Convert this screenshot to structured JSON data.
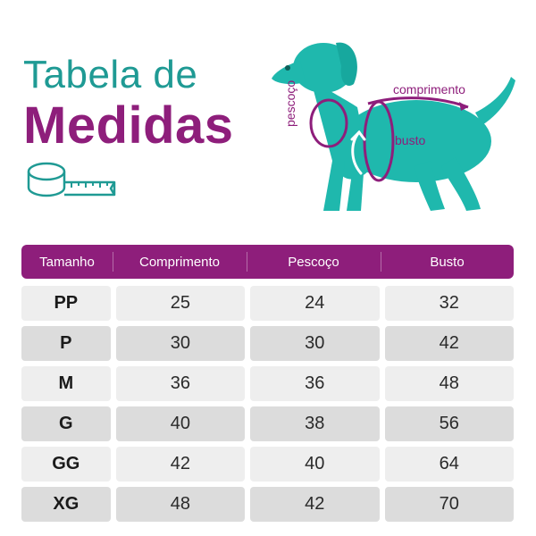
{
  "title": {
    "line1": "Tabela de",
    "line2": "Medidas"
  },
  "illustration": {
    "labels": {
      "comprimento": "comprimento",
      "busto": "busto",
      "pescoco": "pescoço"
    },
    "colors": {
      "dog": "#1fb8ad",
      "accent": "#8e1e7b",
      "teal_text": "#1f9a94"
    }
  },
  "table": {
    "headers": [
      "Tamanho",
      "Comprimento",
      "Pescoço",
      "Busto"
    ],
    "rows": [
      {
        "size": "PP",
        "comprimento": "25",
        "pescoco": "24",
        "busto": "32"
      },
      {
        "size": "P",
        "comprimento": "30",
        "pescoco": "30",
        "busto": "42"
      },
      {
        "size": "M",
        "comprimento": "36",
        "pescoco": "36",
        "busto": "48"
      },
      {
        "size": "G",
        "comprimento": "40",
        "pescoco": "38",
        "busto": "56"
      },
      {
        "size": "GG",
        "comprimento": "42",
        "pescoco": "40",
        "busto": "64"
      },
      {
        "size": "XG",
        "comprimento": "48",
        "pescoco": "42",
        "busto": "70"
      }
    ]
  }
}
